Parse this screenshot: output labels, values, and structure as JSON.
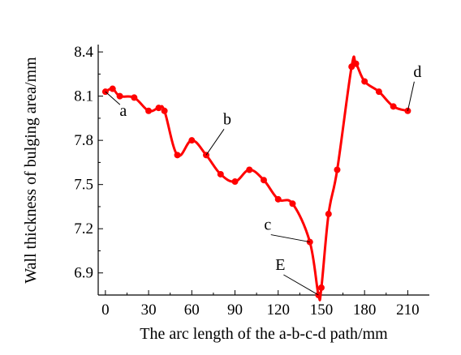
{
  "chart_data": {
    "type": "line",
    "xlabel": "The arc length of the a-b-c-d path/mm",
    "ylabel": "Wall thickness of bulging area/mm",
    "xlim": [
      -5,
      225
    ],
    "ylim": [
      6.75,
      8.45
    ],
    "xticks": [
      0,
      30,
      60,
      90,
      120,
      150,
      180,
      210
    ],
    "yticks": [
      6.9,
      7.2,
      7.5,
      7.8,
      8.1,
      8.4
    ],
    "xtick_labels": [
      "0",
      "30",
      "60",
      "90",
      "120",
      "150",
      "180",
      "210"
    ],
    "ytick_labels": [
      "6.9",
      "7.2",
      "7.5",
      "7.8",
      "8.1",
      "8.4"
    ],
    "grid": false,
    "color": "#ff0000",
    "marker": "circle",
    "series": [
      {
        "x": [
          0,
          5,
          10,
          20,
          30,
          37,
          41,
          50,
          60,
          70,
          80,
          90,
          100,
          110,
          120,
          130,
          142,
          148,
          150,
          155,
          161,
          171,
          174,
          180,
          190,
          200,
          210
        ],
        "y": [
          8.13,
          8.15,
          8.1,
          8.09,
          8.0,
          8.02,
          8.0,
          7.7,
          7.8,
          7.7,
          7.57,
          7.52,
          7.6,
          7.53,
          7.4,
          7.37,
          7.11,
          6.75,
          6.8,
          7.3,
          7.6,
          8.3,
          8.32,
          8.2,
          8.13,
          8.03,
          8.0
        ]
      }
    ],
    "annotations": [
      {
        "text": "a",
        "x": 0,
        "y": 8.13
      },
      {
        "text": "b",
        "x": 70,
        "y": 7.7
      },
      {
        "text": "c",
        "x": 142,
        "y": 7.11
      },
      {
        "text": "E",
        "x": 148,
        "y": 6.75
      },
      {
        "text": "d",
        "x": 210,
        "y": 8.0
      }
    ]
  }
}
